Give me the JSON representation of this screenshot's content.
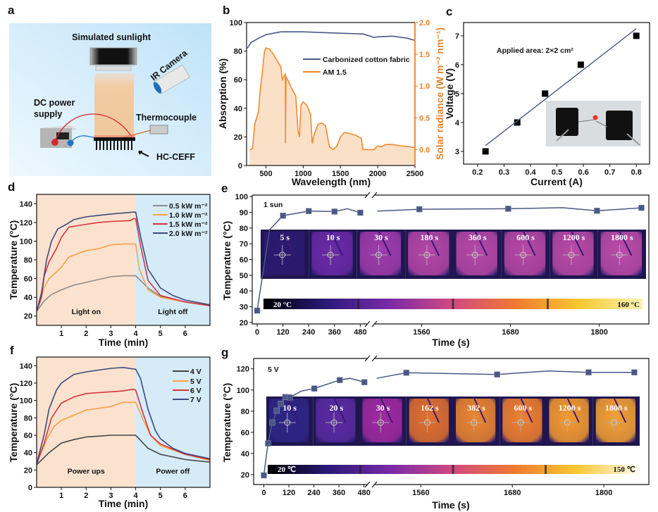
{
  "panels": [
    "a",
    "b",
    "c",
    "d",
    "e",
    "f",
    "g"
  ],
  "diagram": {
    "sunlight_label": "Simulated sunlight",
    "camera_label": "IR Camera",
    "power_label_1": "DC power",
    "power_label_2": "supply",
    "thermocouple_label": "Thermocouple",
    "sample_label": "HC-CEFF",
    "background": "#d6edfa"
  },
  "chart_data": [
    {
      "panel": "b",
      "type": "line",
      "xlabel": "Wavelength (nm)",
      "ylabel": "Absorption (%)",
      "y2label": "Solar radiance (W m⁻² nm⁻¹)",
      "xlim": [
        240,
        2500
      ],
      "ylim": [
        0,
        100
      ],
      "y2lim": [
        -0.25,
        2.0
      ],
      "xticks": [
        500,
        1000,
        1500,
        2000,
        2500
      ],
      "xtick_labels": [
        "500",
        "1000",
        "1500",
        "2000",
        "2500"
      ],
      "yticks": [
        0,
        20,
        40,
        60,
        80,
        100
      ],
      "ytick_labels": [
        "0",
        "20",
        "40",
        "60",
        "80",
        "100"
      ],
      "y2ticks": [
        0,
        0.5,
        1,
        1.5,
        2
      ],
      "y2tick_labels": [
        "0.0",
        "0.5",
        "1.0",
        "1.5",
        "2.0"
      ],
      "y2color": "#e8822e",
      "legend": "top-right",
      "series": [
        {
          "name": "Carbonized cotton fabric",
          "axis": "left",
          "color": "#4b5886",
          "x": [
            250,
            300,
            400,
            500,
            700,
            1000,
            1500,
            1800,
            1900,
            1950,
            2000,
            2200,
            2400,
            2500
          ],
          "y": [
            82,
            86,
            89,
            91.5,
            93.5,
            93.5,
            92.5,
            92,
            90.5,
            89.5,
            90,
            90.5,
            89,
            87.5
          ]
        },
        {
          "name": "AM 1.5",
          "axis": "right",
          "color": "#f08a30",
          "fill": "#fbe0c8",
          "x": [
            280,
            300,
            320,
            350,
            400,
            420,
            450,
            480,
            500,
            550,
            600,
            650,
            700,
            720,
            760,
            762,
            770,
            800,
            850,
            900,
            930,
            950,
            970,
            1000,
            1050,
            1100,
            1120,
            1150,
            1200,
            1250,
            1300,
            1350,
            1400,
            1450,
            1500,
            1550,
            1600,
            1700,
            1780,
            1800,
            1950,
            2000,
            2050,
            2100,
            2200,
            2300,
            2400,
            2500
          ],
          "y": [
            0,
            0,
            0.02,
            0.4,
            0.6,
            0.9,
            1.2,
            1.55,
            1.6,
            1.58,
            1.5,
            1.4,
            1.3,
            1.1,
            1.2,
            0.1,
            1.15,
            1.08,
            0.95,
            0.85,
            0.3,
            0.2,
            0.7,
            0.75,
            0.7,
            0.55,
            0.1,
            0.25,
            0.4,
            0.42,
            0.38,
            0.05,
            0,
            0.05,
            0.2,
            0.27,
            0.26,
            0.23,
            0.18,
            0,
            0,
            0.06,
            0.04,
            0.08,
            0.08,
            0.06,
            0.05,
            0.03
          ]
        }
      ]
    },
    {
      "panel": "c",
      "type": "scatter",
      "xlabel": "Current (A)",
      "ylabel": "Voltage (V)",
      "xlim": [
        0.147,
        0.85
      ],
      "ylim": [
        2.56,
        7.46
      ],
      "xticks": [
        0.2,
        0.3,
        0.4,
        0.5,
        0.6,
        0.7,
        0.8
      ],
      "xtick_labels": [
        "0.2",
        "0.3",
        "0.4",
        "0.5",
        "0.6",
        "0.7",
        "0.8"
      ],
      "yticks": [
        3,
        4,
        5,
        6,
        7
      ],
      "ytick_labels": [
        "3",
        "4",
        "5",
        "6",
        "7"
      ],
      "annotation": "Applied area: 2×2 cm²",
      "series": [
        {
          "color": "#000000",
          "x": [
            0.23,
            0.35,
            0.455,
            0.59,
            0.8
          ],
          "y": [
            3,
            4,
            5,
            6,
            7
          ]
        }
      ],
      "fit": {
        "color": "#4b5886",
        "x": [
          0.23,
          0.8
        ],
        "y": [
          3.2,
          7.25
        ]
      }
    },
    {
      "panel": "d",
      "type": "line",
      "xlabel": "Time (min)",
      "ylabel": "Temperature (°C)",
      "xlim": [
        0,
        7
      ],
      "ylim": [
        10,
        150
      ],
      "xticks": [
        1,
        2,
        3,
        4,
        5,
        6
      ],
      "xtick_labels": [
        "1",
        "2",
        "3",
        "4",
        "5",
        "6"
      ],
      "yticks": [
        20,
        40,
        60,
        80,
        100,
        120,
        140
      ],
      "ytick_labels": [
        "20",
        "40",
        "60",
        "80",
        "100",
        "120",
        "140"
      ],
      "regions": [
        {
          "label": "Light on",
          "from": 0,
          "to": 4,
          "color": "#fbe2cf"
        },
        {
          "label": "Light off",
          "from": 4,
          "to": 7,
          "color": "#d5ebf8"
        }
      ],
      "legend": "top-right",
      "series": [
        {
          "name": "0.5 kW m⁻²",
          "color": "#8c8c8c",
          "x": [
            0,
            0.3,
            0.6,
            1,
            1.5,
            2,
            2.5,
            3,
            3.5,
            4,
            4.5,
            5,
            6,
            7
          ],
          "y": [
            25,
            36,
            43,
            48,
            53,
            56,
            59,
            62,
            63,
            63,
            50,
            41,
            35,
            31
          ]
        },
        {
          "name": "1.0 kW m⁻²",
          "color": "#f7a245",
          "x": [
            0,
            0.3,
            0.5,
            1,
            1.3,
            2,
            2.5,
            3,
            3.5,
            4,
            4.15,
            4.5,
            5,
            6,
            7
          ],
          "y": [
            25,
            50,
            60,
            72,
            83,
            90,
            92,
            96,
            97,
            97,
            70,
            48,
            40,
            35,
            31
          ]
        },
        {
          "name": "1.5 kW m⁻²",
          "color": "#d8323f",
          "x": [
            0,
            0.2,
            0.3,
            0.5,
            0.8,
            1,
            1.3,
            2,
            2.5,
            3,
            3.8,
            3.9,
            4,
            4.2,
            4.5,
            5,
            6,
            7
          ],
          "y": [
            25,
            40,
            62,
            78,
            92,
            104,
            115,
            118,
            120,
            121,
            122,
            124,
            124,
            95,
            58,
            42,
            35,
            31
          ]
        },
        {
          "name": "2.0 kW m⁻²",
          "color": "#3e4a7c",
          "x": [
            0,
            0.2,
            0.4,
            0.6,
            0.85,
            1.2,
            1.5,
            2,
            3,
            3.9,
            4,
            4.2,
            4.5,
            5,
            5.5,
            6,
            7
          ],
          "y": [
            25,
            45,
            80,
            100,
            113,
            118,
            123,
            126,
            129,
            131,
            131,
            105,
            70,
            50,
            42,
            37,
            32
          ]
        }
      ]
    },
    {
      "panel": "e",
      "type": "line",
      "xlabel": "Time (s)",
      "ylabel": "Temperature (°C)",
      "x_segments": [
        [
          -23,
          531
        ],
        [
          1492,
          1867
        ]
      ],
      "ylim": [
        19,
        101
      ],
      "xticks": [
        0,
        120,
        240,
        360,
        480,
        1560,
        1680,
        1800
      ],
      "xtick_labels": [
        "0",
        "120",
        "240",
        "360",
        "480",
        "1560",
        "1680",
        "1800"
      ],
      "yticks": [
        20,
        30,
        40,
        50,
        60,
        70,
        80,
        90,
        100
      ],
      "ytick_labels": [
        "20",
        "30",
        "40",
        "50",
        "60",
        "70",
        "80",
        "90",
        "100"
      ],
      "annotation": "1 sun",
      "series": [
        {
          "color": "#4b5886",
          "points": {
            "x": [
              0,
              120,
              240,
              360,
              480,
              1557,
              1677,
              1797,
              1857
            ],
            "y": [
              27.5,
              87.9,
              90.8,
              90.5,
              89.8,
              92,
              92.3,
              91,
              92.9
            ]
          },
          "line": {
            "x": [
              0,
              58,
              120,
              240,
              360,
              420,
              480,
              1500,
              1557,
              1677,
              1750,
              1797,
              1857
            ],
            "y": [
              27.5,
              79,
              87.9,
              90.8,
              90.5,
              92.3,
              89.8,
              90.8,
              92,
              92.3,
              93,
              91,
              92.9
            ]
          }
        }
      ],
      "thermal_frames": [
        {
          "label": "5 s",
          "color": "#2b1a72"
        },
        {
          "label": "10 s",
          "color": "#6a2aa8"
        },
        {
          "label": "30 s",
          "color": "#a03cae"
        },
        {
          "label": "180 s",
          "color": "#b446a8"
        },
        {
          "label": "360 s",
          "color": "#b848a8"
        },
        {
          "label": "600 s",
          "color": "#b848a6"
        },
        {
          "label": "1200 s",
          "color": "#ba4aa6"
        },
        {
          "label": "1800 s",
          "color": "#bc4ca8"
        }
      ],
      "colorbar": {
        "min_label": "20 °C",
        "max_label": "160 °C",
        "colors": [
          "#000000",
          "#2a1a7a",
          "#7a2aa8",
          "#d04a80",
          "#f07a30",
          "#f8c830",
          "#f8f2b0"
        ]
      }
    },
    {
      "panel": "f",
      "type": "line",
      "xlabel": "Time (min)",
      "ylabel": "Temperature (°C)",
      "xlim": [
        0,
        7
      ],
      "ylim": [
        0,
        150
      ],
      "xticks": [
        1,
        2,
        3,
        4,
        5,
        6
      ],
      "xtick_labels": [
        "1",
        "2",
        "3",
        "4",
        "5",
        "6"
      ],
      "yticks": [
        0,
        20,
        40,
        60,
        80,
        100,
        120,
        140
      ],
      "ytick_labels": [
        "0",
        "20",
        "40",
        "60",
        "80",
        "100",
        "120",
        "140"
      ],
      "regions": [
        {
          "label": "Power ups",
          "from": 0,
          "to": 4,
          "color": "#fbe2cf"
        },
        {
          "label": "Power off",
          "from": 4,
          "to": 7,
          "color": "#d5ebf8"
        }
      ],
      "legend": "top-right",
      "series": [
        {
          "name": "4 V",
          "color": "#444444",
          "x": [
            0,
            0.5,
            1,
            1.5,
            2,
            3,
            4,
            4.5,
            5,
            6,
            7
          ],
          "y": [
            26,
            40,
            51,
            55,
            58,
            60,
            60,
            45,
            38,
            32,
            29
          ]
        },
        {
          "name": "5 V",
          "color": "#f7a245",
          "x": [
            0,
            0.4,
            0.7,
            1,
            1.5,
            2,
            2.5,
            3,
            3.5,
            4,
            4.3,
            4.6,
            5,
            6,
            7
          ],
          "y": [
            27,
            55,
            70,
            77,
            83,
            89,
            91,
            93,
            98,
            98,
            78,
            60,
            48,
            38,
            31
          ]
        },
        {
          "name": "6 V",
          "color": "#d8323f",
          "x": [
            0,
            0.3,
            0.6,
            1,
            1.5,
            2,
            3,
            3.5,
            3.9,
            4,
            4.3,
            4.6,
            5,
            6,
            7
          ],
          "y": [
            27,
            50,
            80,
            97,
            104,
            108,
            110,
            111,
            113,
            112,
            85,
            60,
            50,
            38,
            32
          ]
        },
        {
          "name": "7 V",
          "color": "#3e4a7c",
          "x": [
            0,
            0.3,
            0.5,
            0.8,
            1,
            1.5,
            2,
            2.5,
            3,
            3.5,
            4,
            4.2,
            4.5,
            4.8,
            5,
            5.5,
            6,
            7
          ],
          "y": [
            27,
            60,
            90,
            112,
            120,
            130,
            133,
            135,
            137,
            138,
            136,
            125,
            90,
            65,
            56,
            45,
            39,
            33
          ]
        }
      ]
    },
    {
      "panel": "g",
      "type": "line",
      "xlabel": "Time (s)",
      "ylabel": "Temperature (°C)",
      "x_segments": [
        [
          -49,
          515
        ],
        [
          1495,
          1859
        ]
      ],
      "ylim": [
        10.6,
        129.8
      ],
      "xticks": [
        0,
        120,
        240,
        360,
        480,
        1560,
        1680,
        1800
      ],
      "xtick_labels": [
        "0",
        "120",
        "240",
        "360",
        "480",
        "1560",
        "1680",
        "1800"
      ],
      "yticks": [
        20,
        40,
        60,
        80,
        100,
        120
      ],
      "ytick_labels": [
        "20",
        "40",
        "60",
        "80",
        "100",
        "120"
      ],
      "annotation": "5 V",
      "series": [
        {
          "color": "#4b5886",
          "points": {
            "x": [
              0,
              20,
              41,
              62,
              82,
              103,
              124,
              242,
              364,
              482,
              1541,
              1660,
              1780,
              1840
            ],
            "y": [
              19.3,
              49.5,
              69.2,
              80.5,
              87,
              93.4,
              93,
              101.4,
              109.4,
              107.4,
              116.3,
              114.7,
              116.7,
              116.7
            ]
          },
          "line": {
            "x": [
              0,
              20,
              41,
              62,
              82,
              103,
              124,
              180,
              242,
              364,
              413,
              482,
              1502,
              1541,
              1660,
              1728,
              1780,
              1840
            ],
            "y": [
              19.3,
              49.5,
              69.2,
              80.5,
              87,
              93.4,
              93,
              99,
              101.4,
              109.4,
              111,
              107.4,
              111,
              116.3,
              114.7,
              118,
              116.7,
              116.7
            ]
          }
        }
      ],
      "thermal_frames": [
        {
          "label": "10 s",
          "color": "#2e2686"
        },
        {
          "label": "20 s",
          "color": "#5a2aa2"
        },
        {
          "label": "30 s",
          "color": "#a02aa2"
        },
        {
          "label": "162 s",
          "color": "#e27030"
        },
        {
          "label": "382 s",
          "color": "#ec8630"
        },
        {
          "label": "600 s",
          "color": "#f08030"
        },
        {
          "label": "1200 s",
          "color": "#f59a30"
        },
        {
          "label": "1800 s",
          "color": "#f5a034"
        }
      ],
      "colorbar": {
        "min_label": "20 ℃",
        "max_label": "150 ℃",
        "colors": [
          "#000000",
          "#2a1a7a",
          "#7a2aa8",
          "#d04a80",
          "#f07a30",
          "#f8c830",
          "#fbfae8"
        ]
      }
    }
  ]
}
